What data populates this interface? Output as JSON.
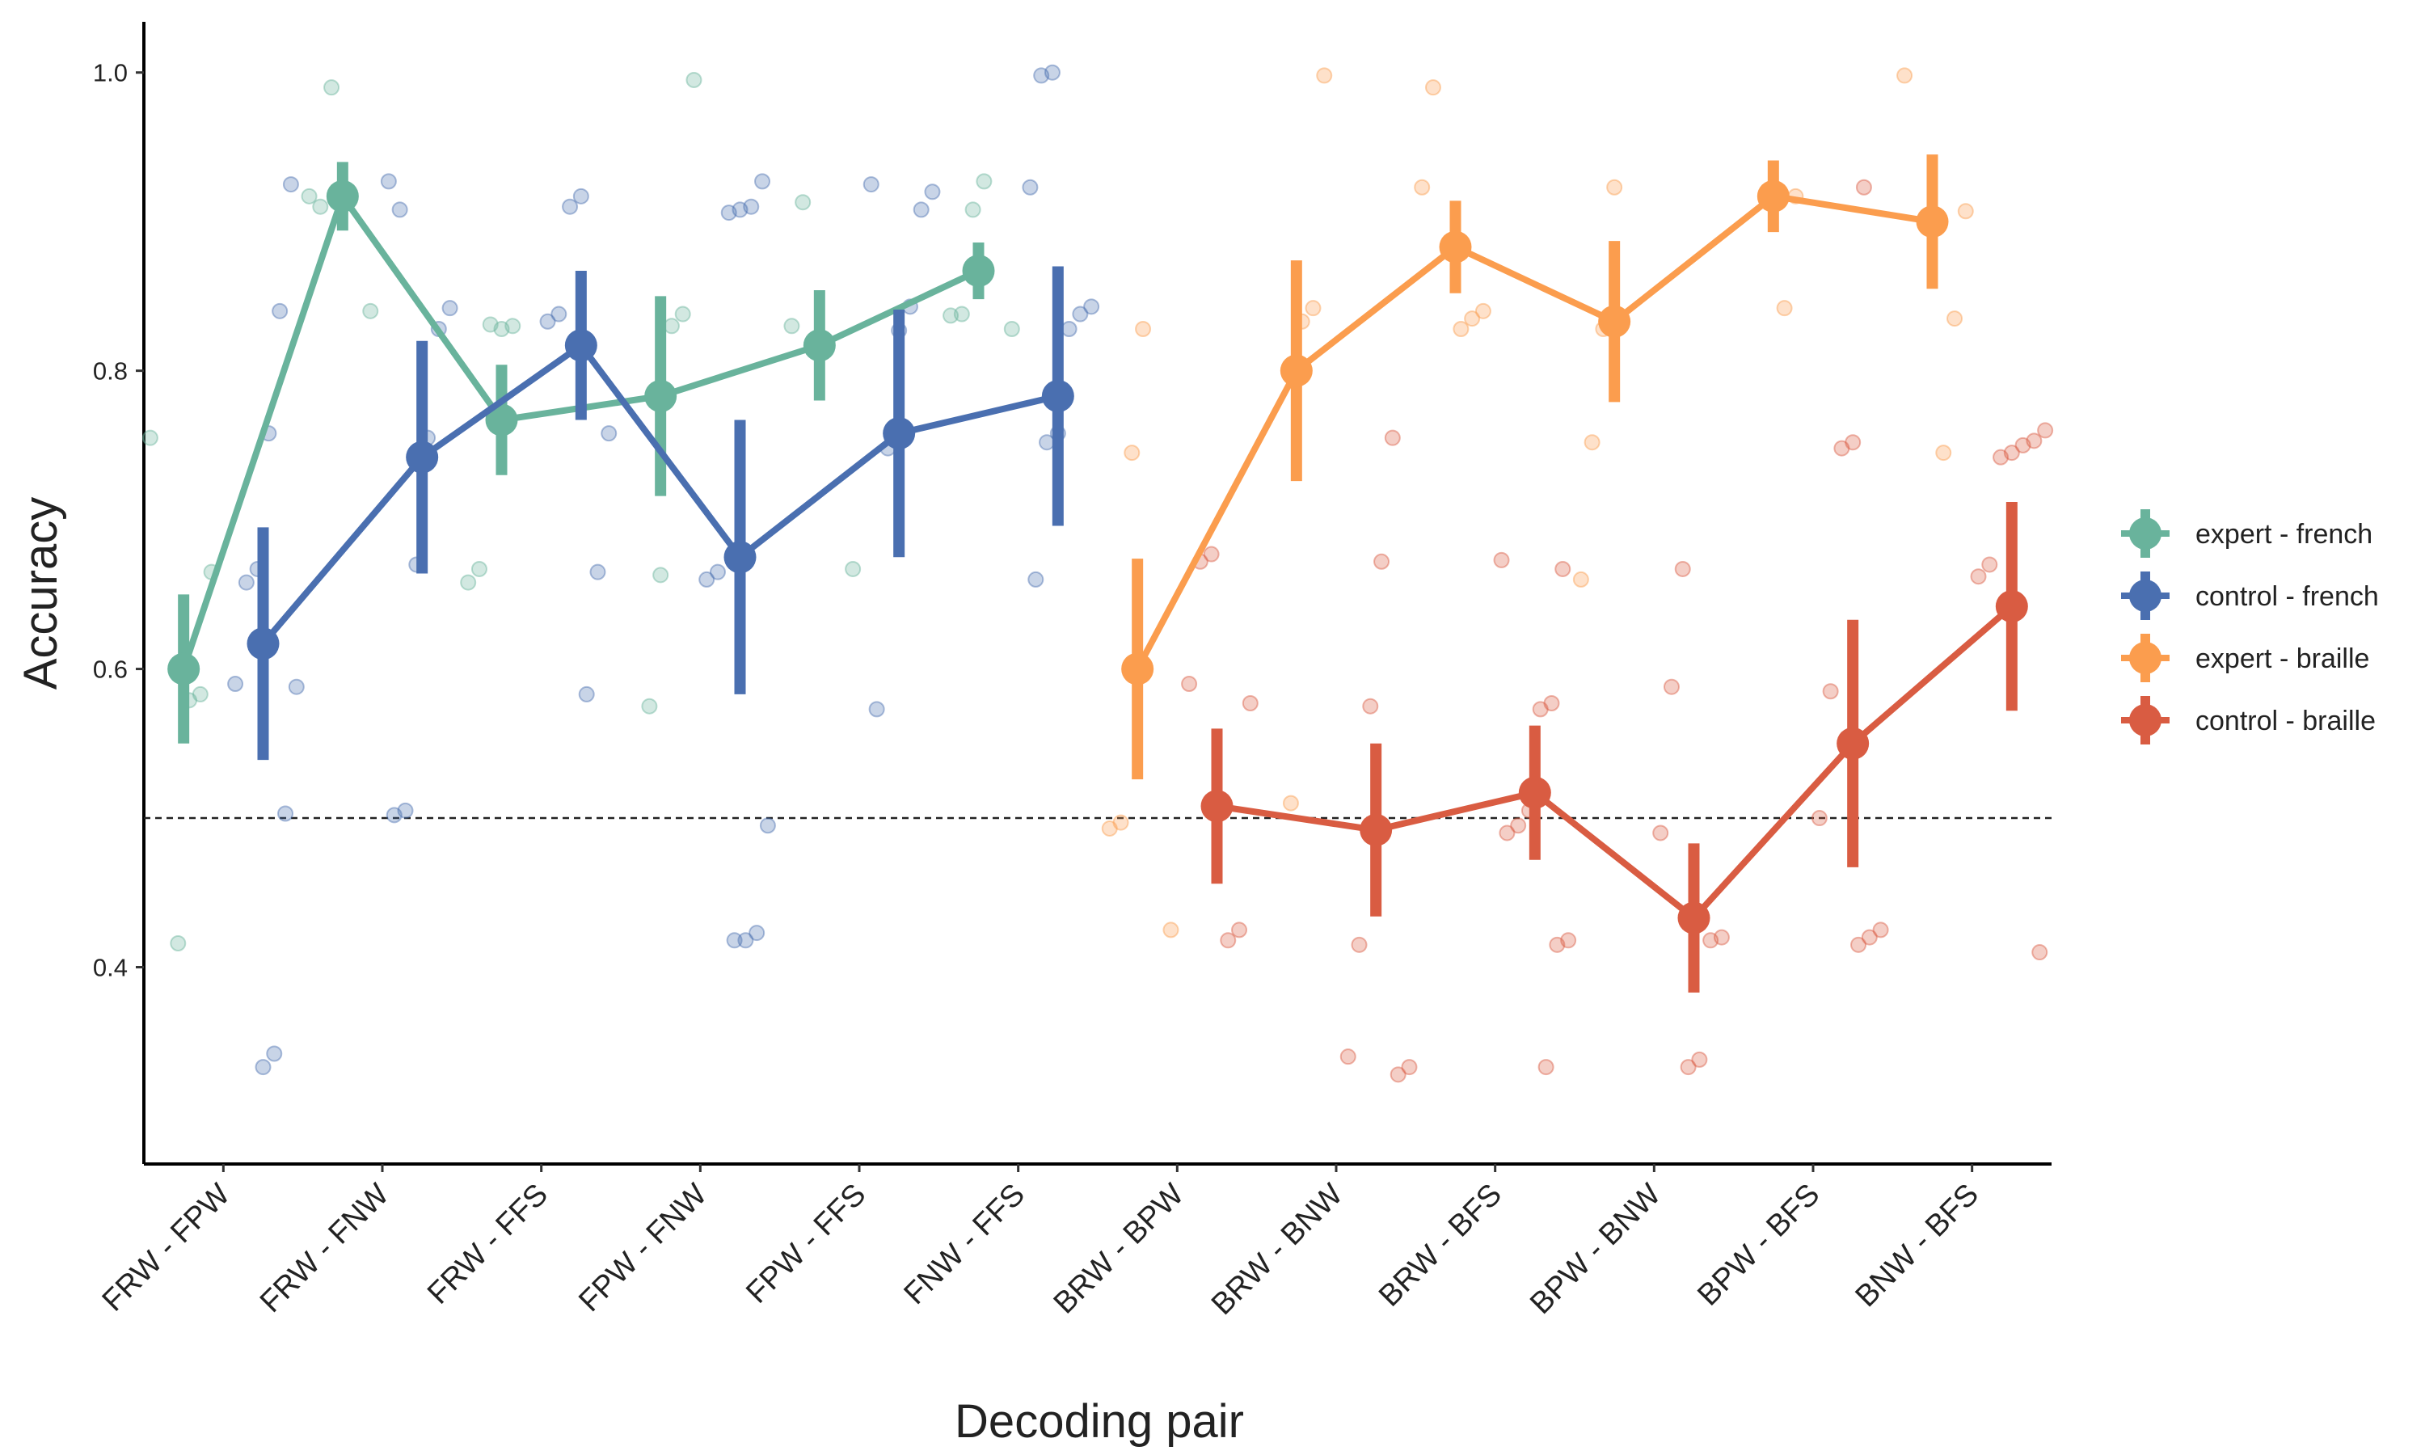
{
  "chart_data": {
    "type": "pointrange",
    "xlabel": "Decoding pair",
    "ylabel": "Accuracy",
    "categories": [
      "FRW - FPW",
      "FRW - FNW",
      "FRW - FFS",
      "FPW - FNW",
      "FPW - FFS",
      "FNW - FFS",
      "BRW - BPW",
      "BRW - BNW",
      "BRW - BFS",
      "BPW - BNW",
      "BPW - BFS",
      "BNW - BFS"
    ],
    "ylim": [
      0.268,
      1.034
    ],
    "yticks": [
      {
        "value": 0.4,
        "label": "0.4"
      },
      {
        "value": 0.6,
        "label": "0.6"
      },
      {
        "value": 0.8,
        "label": "0.8"
      },
      {
        "value": 1.0,
        "label": "1.0"
      }
    ],
    "reference_line": 0.5,
    "legend": "right",
    "series": [
      {
        "name": "expert - french",
        "color": "#69b39c",
        "values": [
          0.6,
          0.917,
          0.767,
          0.783,
          0.817,
          0.867,
          null,
          null,
          null,
          null,
          null,
          null
        ],
        "errors": [
          0.05,
          0.023,
          0.037,
          0.067,
          0.037,
          0.019,
          null,
          null,
          null,
          null,
          null,
          null
        ],
        "points": [
          [
            0.755,
            0.665,
            0.583,
            0.579,
            0.416
          ],
          [
            0.99,
            0.91,
            0.917,
            0.84
          ],
          [
            0.83,
            0.828,
            0.831,
            0.667,
            0.658
          ],
          [
            0.995,
            0.838,
            0.83,
            0.663,
            0.575
          ],
          [
            0.913,
            0.83,
            0.667
          ],
          [
            0.927,
            0.908,
            0.838,
            0.837,
            0.828
          ],
          [],
          [],
          [],
          [],
          [],
          []
        ]
      },
      {
        "name": "control - french",
        "color": "#4a6fb0",
        "values": [
          0.617,
          0.742,
          0.817,
          0.675,
          0.758,
          0.783,
          null,
          null,
          null,
          null,
          null,
          null
        ],
        "errors": [
          0.078,
          0.078,
          0.05,
          0.092,
          0.083,
          0.087,
          null,
          null,
          null,
          null,
          null,
          null
        ],
        "points": [
          [
            0.925,
            0.84,
            0.758,
            0.667,
            0.658,
            0.59,
            0.588,
            0.503,
            0.342,
            0.333
          ],
          [
            0.908,
            0.927,
            0.842,
            0.828,
            0.755,
            0.67,
            0.505,
            0.502
          ],
          [
            0.917,
            0.91,
            0.838,
            0.833,
            0.758,
            0.665,
            0.583
          ],
          [
            0.927,
            0.91,
            0.908,
            0.906,
            0.665,
            0.66,
            0.495,
            0.423,
            0.418,
            0.418
          ],
          [
            0.925,
            0.92,
            0.908,
            0.843,
            0.827,
            0.748,
            0.573
          ],
          [
            1.0,
            0.998,
            0.923,
            0.843,
            0.838,
            0.828,
            0.758,
            0.752,
            0.66
          ],
          [],
          [],
          [],
          [],
          [],
          []
        ]
      },
      {
        "name": "expert - braille",
        "color": "#fb9d4e",
        "values": [
          null,
          null,
          null,
          null,
          null,
          null,
          0.6,
          0.8,
          0.883,
          0.833,
          0.917,
          0.9
        ],
        "errors": [
          null,
          null,
          null,
          null,
          null,
          null,
          0.074,
          0.074,
          0.031,
          0.054,
          0.024,
          0.045
        ],
        "points": [
          [],
          [],
          [],
          [],
          [],
          [],
          [
            0.828,
            0.745,
            0.497,
            0.493,
            0.425
          ],
          [
            0.998,
            0.842,
            0.833,
            0.51
          ],
          [
            0.99,
            0.923,
            0.84,
            0.835,
            0.828
          ],
          [
            0.923,
            0.828,
            0.752,
            0.66
          ],
          [
            0.917,
            0.842,
            0.912
          ],
          [
            0.998,
            0.907,
            0.835,
            0.745
          ]
        ]
      },
      {
        "name": "control - braille",
        "color": "#d95c42",
        "values": [
          null,
          null,
          null,
          null,
          null,
          null,
          0.508,
          0.492,
          0.517,
          0.433,
          0.55,
          0.642
        ],
        "errors": [
          null,
          null,
          null,
          null,
          null,
          null,
          0.052,
          0.058,
          0.045,
          0.05,
          0.083,
          0.07
        ],
        "points": [
          [],
          [],
          [],
          [],
          [],
          [],
          [
            0.677,
            0.672,
            0.59,
            0.577,
            0.425,
            0.418
          ],
          [
            0.755,
            0.672,
            0.575,
            0.415,
            0.34,
            0.333,
            0.328
          ],
          [
            0.673,
            0.667,
            0.577,
            0.573,
            0.505,
            0.495,
            0.49,
            0.418,
            0.415,
            0.333
          ],
          [
            0.667,
            0.588,
            0.49,
            0.42,
            0.418,
            0.338,
            0.333
          ],
          [
            0.923,
            0.752,
            0.748,
            0.585,
            0.5,
            0.425,
            0.42,
            0.415
          ],
          [
            0.76,
            0.753,
            0.75,
            0.745,
            0.742,
            0.67,
            0.662,
            0.41
          ]
        ]
      }
    ]
  }
}
